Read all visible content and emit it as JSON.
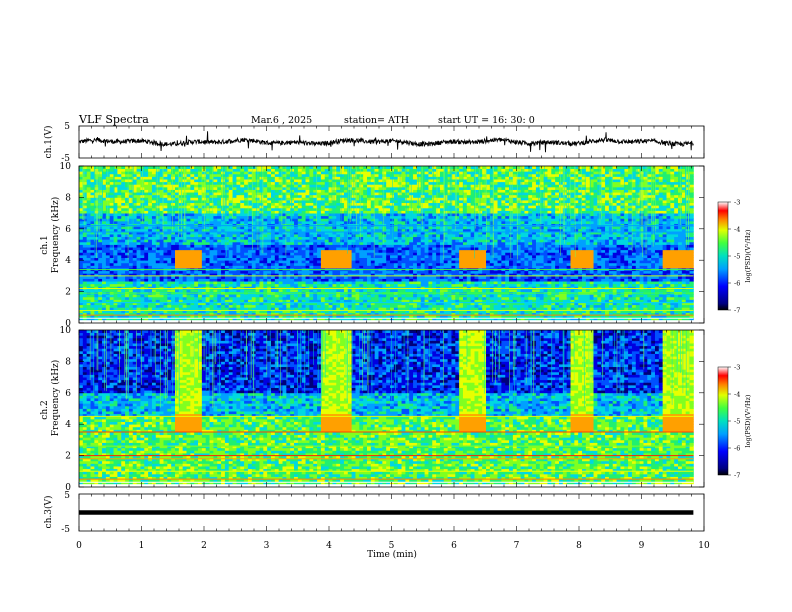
{
  "header": {
    "title": "VLF  Spectra",
    "date": "Mar.6  , 2025",
    "station": "station= ATH",
    "start": "start  UT  =   16: 30: 0"
  },
  "chart_data": {
    "type": "heatmap",
    "xlabel": "Time  (min)",
    "xlim": [
      0,
      10
    ],
    "xticks": [
      "0",
      "1",
      "2",
      "3",
      "4",
      "5",
      "6",
      "7",
      "8",
      "9",
      "10"
    ],
    "panels": [
      {
        "name": "ch1-waveform",
        "ylabel": "ch.1(V)",
        "ylim": [
          -5,
          5
        ],
        "yticks": [
          "5",
          "-5"
        ],
        "data_end_min": 9.83
      },
      {
        "name": "ch1-spectrogram",
        "ylabel_top": "ch.1",
        "ylabel": "Frequency  (kHz)",
        "ylim": [
          0,
          10
        ],
        "yticks": [
          "0",
          "2",
          "4",
          "6",
          "8",
          "10"
        ],
        "colorbar": {
          "label": "log(PSD)(V²/Hz)",
          "range": [
            -7,
            -3
          ],
          "ticks": [
            "-3",
            "-4",
            "-5",
            "-6",
            "-7"
          ]
        },
        "bursts_min": [
          [
            1.55,
            1.95
          ],
          [
            3.9,
            4.35
          ],
          [
            6.1,
            6.5
          ],
          [
            7.85,
            8.25
          ],
          [
            9.35,
            9.8
          ]
        ],
        "data_end_min": 9.83
      },
      {
        "name": "ch2-spectrogram",
        "ylabel_top": "ch.2",
        "ylabel": "Frequency  (kHz)",
        "ylim": [
          0,
          10
        ],
        "yticks": [
          "0",
          "2",
          "4",
          "6",
          "8",
          "10"
        ],
        "colorbar": {
          "label": "log(PSD)(V²/Hz)",
          "range": [
            -7,
            -3
          ],
          "ticks": [
            "-3",
            "-4",
            "-5",
            "-6",
            "-7"
          ]
        },
        "bursts_min": [
          [
            1.55,
            1.95
          ],
          [
            3.9,
            4.35
          ],
          [
            6.1,
            6.5
          ],
          [
            7.85,
            8.25
          ],
          [
            9.35,
            9.8
          ]
        ],
        "data_end_min": 9.83
      },
      {
        "name": "ch3-waveform",
        "ylabel": "ch.3(V)",
        "ylim": [
          -5,
          5
        ],
        "yticks": [
          "5",
          "-5"
        ],
        "level_v": 0,
        "data_end_min": 9.83
      }
    ]
  }
}
